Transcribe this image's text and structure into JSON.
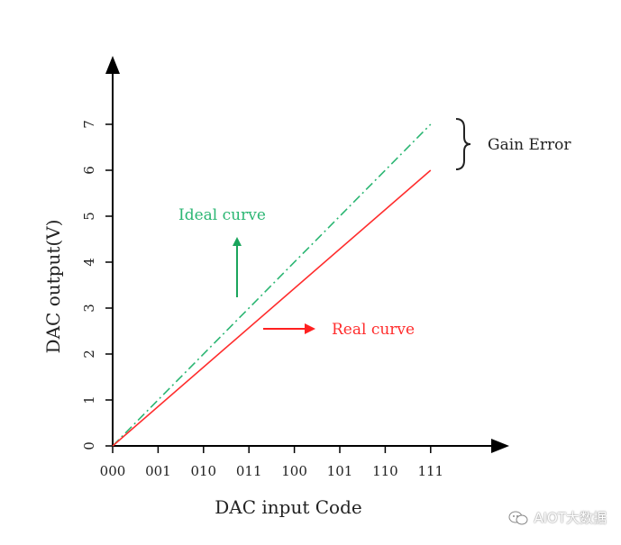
{
  "chart_data": {
    "type": "line",
    "xlabel": "DAC input Code",
    "ylabel": "DAC output(V)",
    "categories": [
      "000",
      "001",
      "010",
      "011",
      "100",
      "101",
      "110",
      "111"
    ],
    "yticks": [
      0,
      1,
      2,
      3,
      4,
      5,
      6,
      7
    ],
    "ylim": [
      0,
      8
    ],
    "grid": false,
    "series": [
      {
        "name": "Ideal curve",
        "color": "#2bb673",
        "style": "dash-dot",
        "x": [
          "000",
          "111"
        ],
        "values": [
          0,
          7
        ]
      },
      {
        "name": "Real curve",
        "color": "#ff2d2d",
        "style": "solid",
        "x": [
          "000",
          "111"
        ],
        "values": [
          0,
          6
        ]
      }
    ],
    "annotations": {
      "gain_error": "Gain Error",
      "ideal_label": "Ideal curve",
      "real_label": "Real curve"
    }
  },
  "watermark": {
    "text": "AIOT大数据",
    "icon": "wechat-icon"
  }
}
